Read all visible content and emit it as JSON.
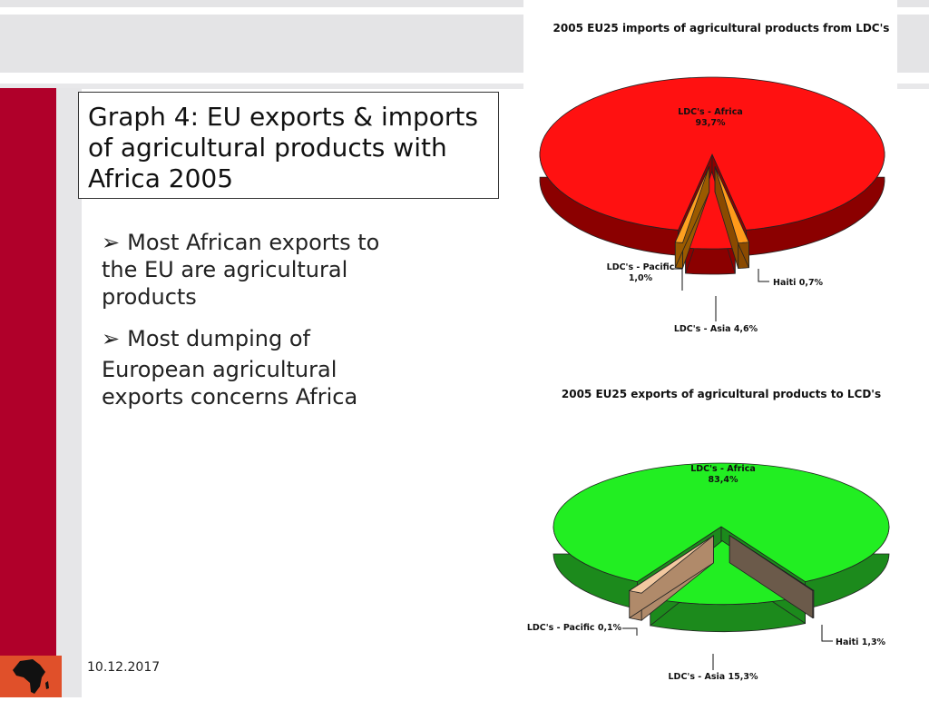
{
  "slide": {
    "title": "Graph 4: EU exports & imports of agricultural products with Africa 2005",
    "bullets": [
      "Most African exports to the EU are agricultural products",
      "Most dumping of",
      "European agricultural exports concerns Africa"
    ],
    "bullet_marker": "➢",
    "date": "10.12.2017",
    "logo_icon": "africa-map-icon"
  },
  "colors": {
    "accent_red_bar": "#b0002a",
    "logo_bg": "#e0502a",
    "imports_main": "#ff1111",
    "imports_side": "#8b0000",
    "exports_main": "#22ee22",
    "exports_side": "#1c8a1c"
  },
  "chart_data": [
    {
      "type": "pie",
      "title": "2005 EU25 imports of agricultural products from LDC's",
      "slices": [
        {
          "label": "LDC's - Africa",
          "value": 93.7,
          "value_label": "93,7%"
        },
        {
          "label": "LDC's - Pacific",
          "value": 1.0,
          "value_label": "1,0%"
        },
        {
          "label": "LDC's - Asia",
          "value": 4.6,
          "value_label": "4,6%"
        },
        {
          "label": "Haiti",
          "value": 0.7,
          "value_label": "0,7%"
        }
      ],
      "style": "3d-exploded"
    },
    {
      "type": "pie",
      "title": "2005 EU25 exports of agricultural products to LCD's",
      "slices": [
        {
          "label": "LDC's - Africa",
          "value": 83.4,
          "value_label": "83,4%"
        },
        {
          "label": "LDC's - Pacific",
          "value": 0.1,
          "value_label": "0,1%"
        },
        {
          "label": "LDC's - Asia",
          "value": 15.3,
          "value_label": "15,3%"
        },
        {
          "label": "Haiti",
          "value": 1.3,
          "value_label": "1,3%"
        }
      ],
      "style": "3d-exploded"
    }
  ]
}
